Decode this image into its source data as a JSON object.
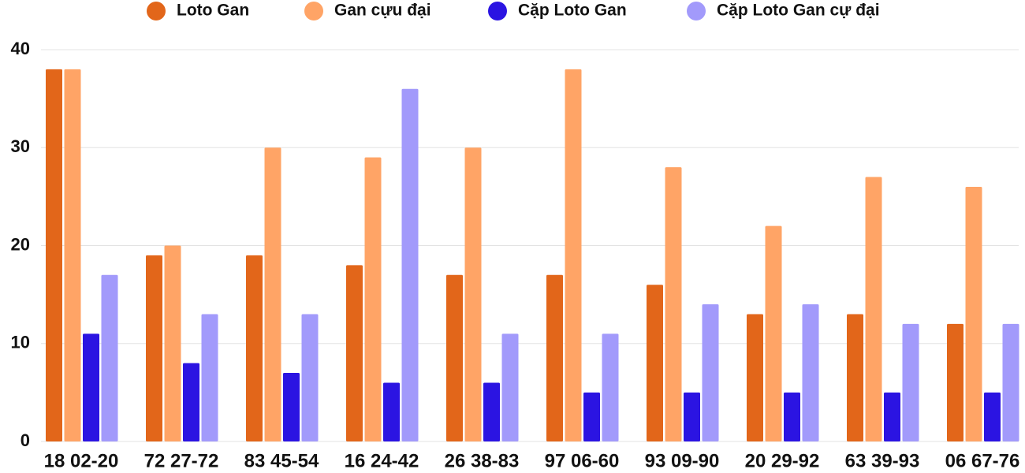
{
  "chart_data": {
    "type": "bar",
    "categories": [
      "18 02-20",
      "72 27-72",
      "83 45-54",
      "16 24-42",
      "26 38-83",
      "97 06-60",
      "93 09-90",
      "20 29-92",
      "63 39-93",
      "06 67-76"
    ],
    "series": [
      {
        "name": "Loto Gan",
        "color": "#e2661a",
        "values": [
          38,
          19,
          19,
          18,
          17,
          17,
          16,
          13,
          13,
          12
        ]
      },
      {
        "name": "Gan cựu đại",
        "color": "#ffa466",
        "values": [
          38,
          20,
          30,
          29,
          30,
          38,
          28,
          22,
          27,
          26
        ]
      },
      {
        "name": "Cặp Loto Gan",
        "color": "#2b14e2",
        "values": [
          11,
          8,
          7,
          6,
          6,
          5,
          5,
          5,
          5,
          5
        ]
      },
      {
        "name": "Cặp Loto Gan cự đại",
        "color": "#a29afb",
        "values": [
          17,
          13,
          13,
          36,
          11,
          11,
          14,
          14,
          12,
          12
        ]
      }
    ],
    "ylim": [
      0,
      40
    ],
    "yticks": [
      0,
      10,
      20,
      30,
      40
    ],
    "grid": true,
    "legend": "top"
  }
}
